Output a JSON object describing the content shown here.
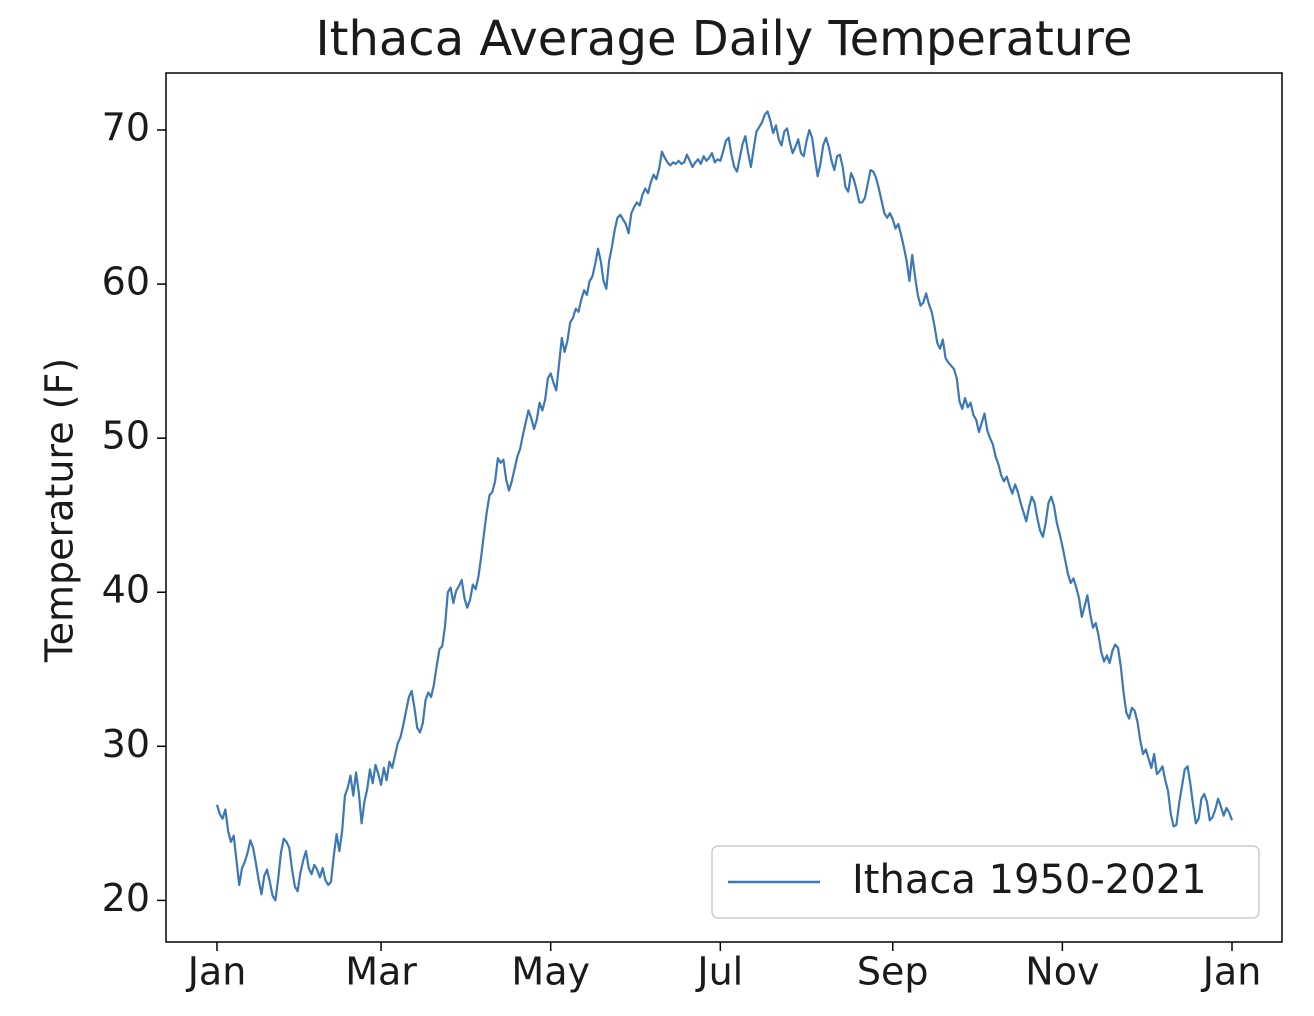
{
  "chart_data": {
    "type": "line",
    "title": "Ithaca Average Daily Temperature",
    "y_label": "Temperature (F)",
    "categories": [
      "Jan",
      null,
      null,
      null,
      null,
      null,
      null,
      null,
      null,
      null,
      null,
      null,
      null,
      null,
      null,
      null,
      null,
      null,
      null,
      null,
      null,
      null,
      null,
      null,
      null,
      null,
      null,
      null,
      null,
      null,
      null,
      null,
      null,
      null,
      null,
      null,
      null,
      null,
      null,
      null,
      null,
      null,
      null,
      null,
      null,
      null,
      null,
      null,
      null,
      null,
      null,
      null,
      null,
      null,
      null,
      null,
      null,
      null,
      null,
      "Mar",
      null,
      null,
      null,
      null,
      null,
      null,
      null,
      null,
      null,
      null,
      null,
      null,
      null,
      null,
      null,
      null,
      null,
      null,
      null,
      null,
      null,
      null,
      null,
      null,
      null,
      null,
      null,
      null,
      null,
      null,
      null,
      null,
      null,
      null,
      null,
      null,
      null,
      null,
      null,
      null,
      null,
      null,
      null,
      null,
      null,
      null,
      null,
      null,
      null,
      null,
      null,
      null,
      null,
      null,
      null,
      null,
      null,
      null,
      null,
      null,
      "May",
      null,
      null,
      null,
      null,
      null,
      null,
      null,
      null,
      null,
      null,
      null,
      null,
      null,
      null,
      null,
      null,
      null,
      null,
      null,
      null,
      null,
      null,
      null,
      null,
      null,
      null,
      null,
      null,
      null,
      null,
      null,
      null,
      null,
      null,
      null,
      null,
      null,
      null,
      null,
      null,
      null,
      null,
      null,
      null,
      null,
      null,
      null,
      null,
      null,
      null,
      null,
      null,
      null,
      null,
      null,
      null,
      null,
      null,
      null,
      null,
      "Jul",
      null,
      null,
      null,
      null,
      null,
      null,
      null,
      null,
      null,
      null,
      null,
      null,
      null,
      null,
      null,
      null,
      null,
      null,
      null,
      null,
      null,
      null,
      null,
      null,
      null,
      null,
      null,
      null,
      null,
      null,
      null,
      null,
      null,
      null,
      null,
      null,
      null,
      null,
      null,
      null,
      null,
      null,
      null,
      null,
      null,
      null,
      null,
      null,
      null,
      null,
      null,
      null,
      null,
      null,
      null,
      null,
      null,
      null,
      null,
      null,
      null,
      "Sep",
      null,
      null,
      null,
      null,
      null,
      null,
      null,
      null,
      null,
      null,
      null,
      null,
      null,
      null,
      null,
      null,
      null,
      null,
      null,
      null,
      null,
      null,
      null,
      null,
      null,
      null,
      null,
      null,
      null,
      null,
      null,
      null,
      null,
      null,
      null,
      null,
      null,
      null,
      null,
      null,
      null,
      null,
      null,
      null,
      null,
      null,
      null,
      null,
      null,
      null,
      null,
      null,
      null,
      null,
      null,
      null,
      null,
      null,
      null,
      null,
      "Nov",
      null,
      null,
      null,
      null,
      null,
      null,
      null,
      null,
      null,
      null,
      null,
      null,
      null,
      null,
      null,
      null,
      null,
      null,
      null,
      null,
      null,
      null,
      null,
      null,
      null,
      null,
      null,
      null,
      null,
      null,
      null,
      null,
      null,
      null,
      null,
      null,
      null,
      null,
      null,
      null,
      null,
      null,
      null,
      null,
      null,
      null,
      null,
      null,
      null,
      null,
      null,
      null,
      null,
      null,
      null,
      null,
      null,
      null,
      null,
      null,
      "Jan"
    ],
    "series": [
      {
        "name": "Ithaca 1950-2021",
        "color": "#3b78b5",
        "values": [
          26.2,
          25.6,
          25.3,
          25.9,
          24.5,
          23.8,
          24.2,
          22.6,
          21.0,
          22.1,
          22.5,
          23.1,
          23.9,
          23.4,
          22.4,
          21.3,
          20.4,
          21.6,
          22.0,
          21.2,
          20.3,
          20.0,
          21.4,
          23.1,
          24.0,
          23.8,
          23.4,
          22.0,
          20.9,
          20.6,
          21.8,
          22.6,
          23.2,
          22.1,
          21.7,
          22.3,
          22.0,
          21.5,
          22.1,
          21.3,
          21.0,
          21.2,
          22.9,
          24.3,
          23.2,
          24.5,
          26.8,
          27.3,
          28.1,
          26.8,
          28.3,
          27.0,
          25.0,
          26.4,
          27.2,
          28.5,
          27.6,
          28.8,
          28.2,
          27.5,
          28.6,
          27.8,
          29.0,
          28.6,
          29.4,
          30.2,
          30.6,
          31.4,
          32.3,
          33.2,
          33.6,
          32.5,
          31.2,
          30.9,
          31.5,
          33.0,
          33.5,
          33.2,
          34.0,
          35.2,
          36.3,
          36.5,
          37.8,
          40.0,
          40.3,
          39.3,
          40.1,
          40.4,
          40.8,
          39.6,
          39.0,
          39.5,
          40.5,
          40.2,
          41.0,
          42.3,
          43.8,
          45.2,
          46.3,
          46.5,
          47.2,
          48.7,
          48.4,
          48.6,
          47.3,
          46.6,
          47.2,
          48.0,
          48.8,
          49.3,
          50.2,
          51.0,
          51.8,
          51.3,
          50.6,
          51.2,
          52.3,
          51.8,
          52.5,
          53.9,
          54.2,
          53.6,
          53.1,
          54.8,
          56.5,
          55.6,
          56.3,
          57.5,
          57.8,
          58.4,
          58.2,
          59.0,
          59.6,
          59.3,
          60.2,
          60.5,
          61.3,
          62.3,
          61.5,
          60.2,
          59.7,
          61.5,
          62.4,
          63.5,
          64.3,
          64.5,
          64.2,
          63.9,
          63.3,
          64.6,
          65.0,
          65.3,
          65.1,
          65.8,
          66.2,
          65.9,
          66.6,
          67.1,
          66.8,
          67.5,
          68.6,
          68.2,
          67.9,
          67.7,
          67.9,
          67.8,
          68.0,
          67.8,
          67.9,
          68.4,
          68.0,
          67.6,
          67.9,
          68.1,
          67.8,
          68.3,
          68.0,
          68.2,
          68.5,
          67.9,
          68.1,
          68.0,
          68.6,
          69.3,
          69.5,
          68.4,
          67.6,
          67.3,
          68.2,
          69.1,
          69.6,
          68.5,
          67.6,
          68.8,
          69.9,
          70.2,
          70.5,
          71.0,
          71.2,
          70.6,
          69.8,
          70.3,
          69.4,
          69.0,
          69.9,
          70.1,
          69.2,
          68.5,
          68.9,
          69.4,
          68.5,
          68.3,
          69.3,
          70.0,
          69.5,
          68.2,
          67.0,
          67.8,
          69.0,
          69.5,
          68.9,
          68.0,
          67.4,
          68.3,
          68.4,
          67.6,
          66.3,
          66.0,
          67.2,
          66.8,
          66.1,
          65.3,
          65.3,
          65.6,
          66.5,
          67.4,
          67.3,
          66.9,
          66.2,
          65.4,
          64.6,
          64.3,
          64.6,
          64.2,
          63.6,
          63.9,
          63.2,
          62.4,
          61.5,
          60.2,
          61.9,
          60.5,
          59.3,
          58.6,
          58.8,
          59.4,
          58.7,
          58.2,
          57.3,
          56.2,
          55.8,
          56.4,
          55.2,
          54.9,
          54.7,
          54.5,
          53.9,
          52.4,
          51.9,
          52.6,
          52.0,
          52.3,
          51.5,
          51.2,
          50.4,
          51.0,
          51.6,
          50.5,
          50.0,
          49.6,
          48.8,
          48.3,
          47.6,
          47.2,
          47.5,
          46.9,
          46.4,
          47.0,
          46.5,
          45.8,
          45.2,
          44.6,
          45.5,
          46.2,
          45.8,
          44.8,
          44.0,
          43.6,
          44.5,
          45.8,
          46.2,
          45.6,
          44.5,
          43.8,
          43.0,
          42.1,
          41.2,
          40.6,
          40.9,
          40.3,
          39.6,
          38.4,
          39.1,
          39.8,
          38.6,
          37.7,
          38.0,
          37.2,
          36.1,
          35.5,
          35.9,
          35.4,
          36.2,
          36.6,
          36.4,
          35.2,
          33.5,
          32.2,
          31.8,
          32.5,
          32.3,
          31.6,
          30.4,
          29.5,
          29.8,
          29.2,
          28.6,
          29.5,
          28.2,
          28.4,
          28.7,
          27.8,
          27.1,
          25.6,
          24.8,
          24.9,
          26.3,
          27.4,
          28.5,
          28.7,
          27.6,
          26.2,
          25.0,
          25.3,
          26.6,
          26.9,
          26.4,
          25.2,
          25.4,
          25.9,
          26.6,
          26.1,
          25.5,
          26.0,
          25.7,
          25.2
        ]
      }
    ],
    "ylim": [
      17.3,
      73.7
    ],
    "yticks": [
      20,
      30,
      40,
      50,
      60,
      70
    ],
    "grid": false,
    "legend": "lower right"
  }
}
